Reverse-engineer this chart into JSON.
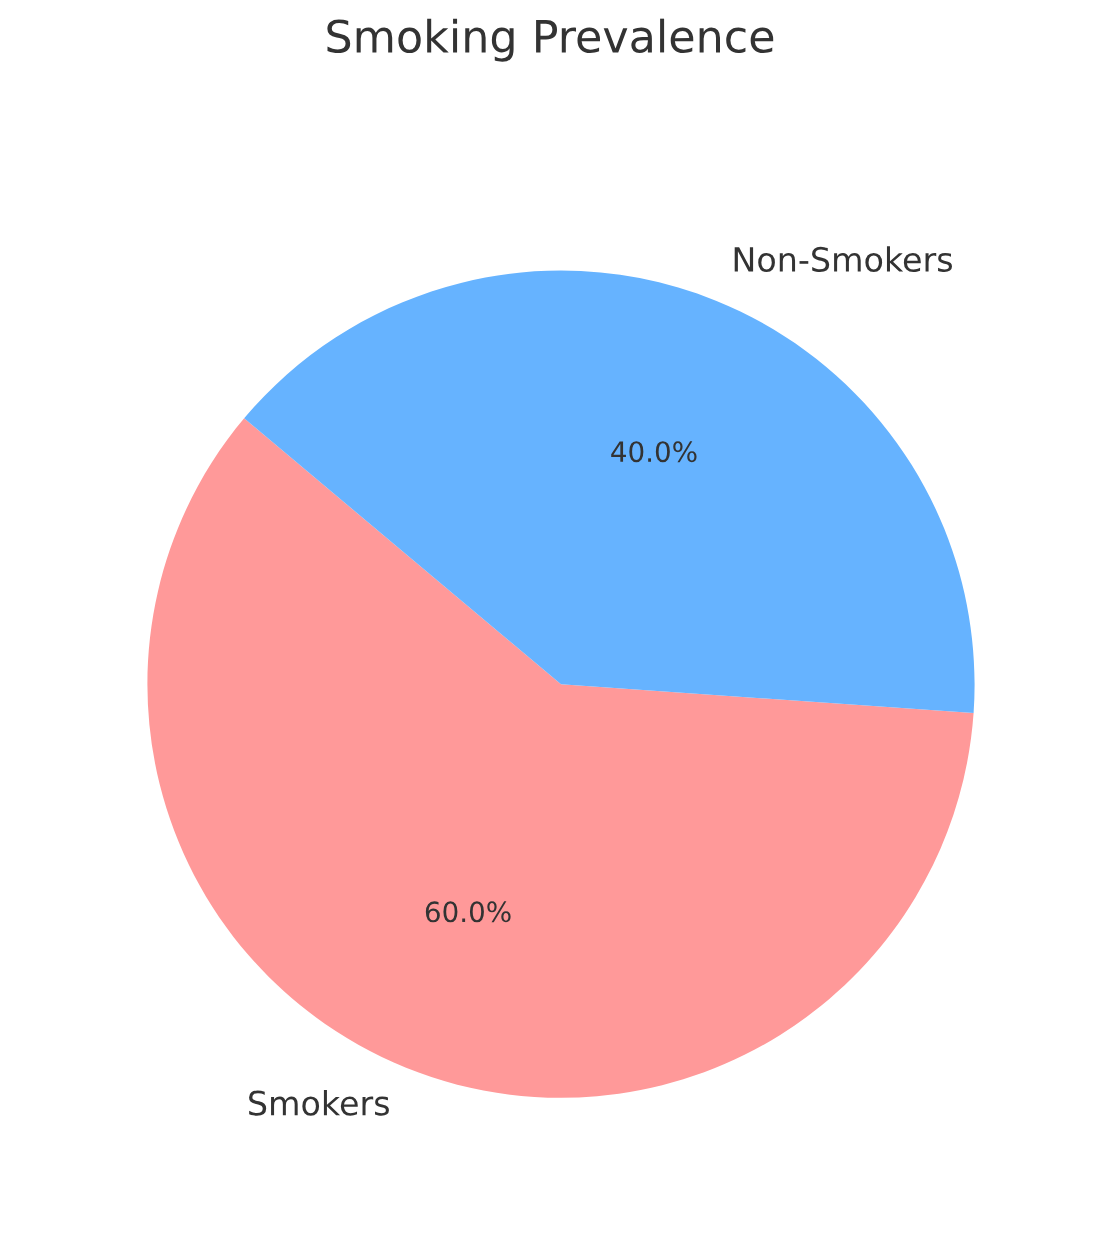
{
  "chart_data": {
    "type": "pie",
    "title": "Smoking Prevalence",
    "categories": [
      "Smokers",
      "Non-Smokers"
    ],
    "values": [
      60,
      40
    ],
    "colors": [
      "#ff9999",
      "#66b3ff"
    ],
    "value_labels": [
      "60.0%",
      "40.0%"
    ]
  }
}
